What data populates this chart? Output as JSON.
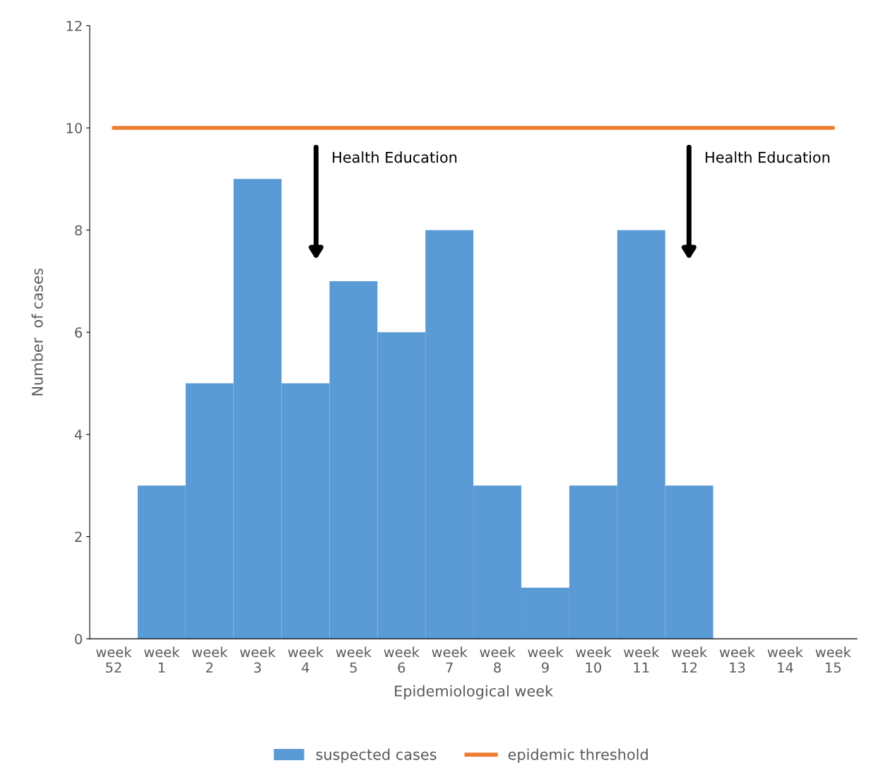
{
  "chart_data": {
    "type": "bar",
    "categories": [
      "week\n52",
      "week\n1",
      "week\n2",
      "week\n3",
      "week\n4",
      "week\n5",
      "week\n6",
      "week\n7",
      "week\n8",
      "week\n9",
      "week\n10",
      "week\n11",
      "week\n12",
      "week\n13",
      "week\n14",
      "week\n15"
    ],
    "series": [
      {
        "name": "suspected cases",
        "color": "#5b9bd5",
        "values": [
          0,
          3,
          5,
          9,
          5,
          7,
          6,
          8,
          3,
          1,
          3,
          8,
          3,
          0,
          0,
          0
        ]
      },
      {
        "name": "epidemic threshold",
        "type": "line",
        "color": "#ed7d31",
        "values": [
          10,
          10,
          10,
          10,
          10,
          10,
          10,
          10,
          10,
          10,
          10,
          10,
          10,
          10,
          10,
          10
        ]
      }
    ],
    "xlabel": "Epidemiological week",
    "ylabel": "Number  of cases",
    "ylim": [
      0,
      12
    ],
    "yticks": [
      0,
      2,
      4,
      6,
      8,
      10,
      12
    ],
    "annotations": [
      "Health Education",
      "Health Education"
    ],
    "grid": false,
    "legend": "bottom"
  }
}
